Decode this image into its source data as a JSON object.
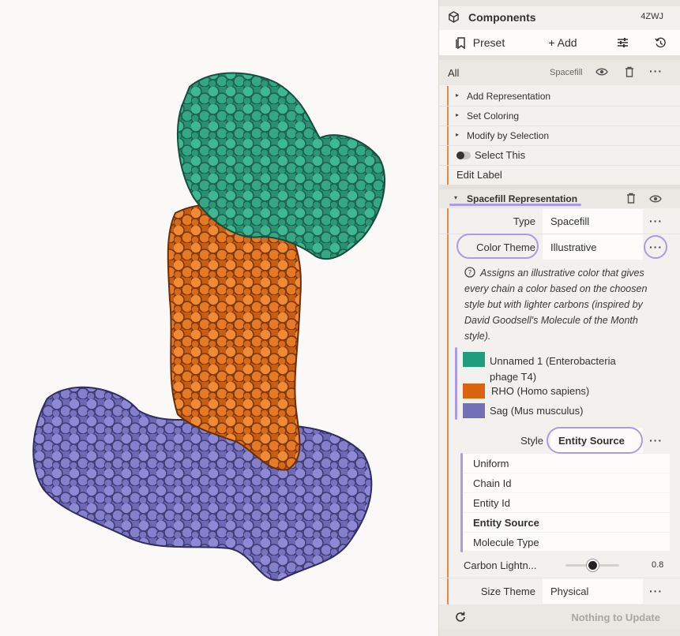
{
  "panel": {
    "header": {
      "title": "Components",
      "pdb_id": "4ZWJ"
    },
    "toolbar": {
      "preset_label": "Preset",
      "add_label": "+ Add"
    },
    "all_row": {
      "label": "All",
      "representation": "Spacefill"
    },
    "actions": {
      "add_representation": "Add Representation",
      "set_coloring": "Set Coloring",
      "modify_by_selection": "Modify by Selection",
      "select_this": "Select This",
      "edit_label": "Edit Label"
    },
    "representation": {
      "title": "Spacefill Representation",
      "type_label": "Type",
      "type_value": "Spacefill",
      "color_theme_label": "Color Theme",
      "color_theme_value": "Illustrative",
      "description": "Assigns an illustrative color that gives every chain a color based on the choosen style but with lighter carbons (inspired by David Goodsell's Molecule of the Month style).",
      "legend": [
        {
          "label": "Unnamed 1 (Enterobacteria phage T4)",
          "color": "#1f9e7e"
        },
        {
          "label": "RHO (Homo sapiens)",
          "color": "#d8640f"
        },
        {
          "label": "Sag (Mus musculus)",
          "color": "#7470b8"
        }
      ],
      "style_label": "Style",
      "style_value": "Entity Source",
      "style_options": [
        "Uniform",
        "Chain Id",
        "Entity Id",
        "Entity Source",
        "Molecule Type"
      ],
      "selected_option_index": 3,
      "carbon_label": "Carbon Lightn...",
      "carbon_value": "0.8",
      "carbon_fraction": 0.8,
      "size_theme_label": "Size Theme",
      "size_theme_value": "Physical"
    },
    "footer": {
      "update_label": "Nothing to Update"
    }
  },
  "colors": {
    "teal": "#2a9a7a",
    "orange": "#e27322",
    "purple": "#8580c9",
    "annotation": "#a99be8",
    "accent_edge": "#e8893c"
  }
}
